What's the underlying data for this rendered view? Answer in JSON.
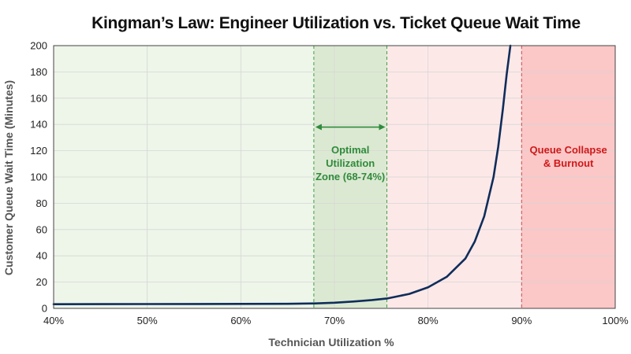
{
  "chart_data": {
    "type": "line",
    "title": "Kingman’s Law: Engineer Utilization vs. Ticket Queue Wait Time",
    "xlabel": "Technician Utilization %",
    "ylabel": "Customer Queue Wait Time (Minutes)",
    "xlim": [
      40,
      100
    ],
    "ylim": [
      0,
      200
    ],
    "x_ticks": [
      40,
      50,
      60,
      70,
      80,
      90,
      100
    ],
    "x_tick_labels": [
      "40%",
      "50%",
      "60%",
      "70%",
      "80%",
      "90%",
      "100%"
    ],
    "y_ticks": [
      0,
      20,
      40,
      60,
      80,
      100,
      120,
      140,
      160,
      180,
      200
    ],
    "y_tick_labels": [
      "0",
      "20",
      "40",
      "60",
      "80",
      "100",
      "120",
      "140",
      "160",
      "180",
      "200"
    ],
    "grid": true,
    "series": [
      {
        "x": [
          40,
          50,
          60,
          65,
          68,
          70,
          72,
          74,
          75.6,
          78,
          80,
          82,
          84,
          85,
          86,
          87,
          87.5,
          88,
          88.4,
          88.8
        ],
        "y": [
          3.2,
          3.3,
          3.4,
          3.5,
          3.8,
          4.3,
          5.2,
          6.3,
          7.5,
          11,
          16,
          24,
          38,
          51,
          70,
          100,
          123,
          152,
          178,
          200
        ]
      }
    ],
    "regions": [
      {
        "x_range": [
          40,
          67.8
        ],
        "color": "#eef5e9"
      },
      {
        "x_range": [
          67.8,
          75.6
        ],
        "color": "#dce9d2",
        "label_lines": [
          "Optimal",
          "Utilization",
          "Zone (68-74%)"
        ],
        "label_color": "#2e8b3a",
        "boundary_color": "#3aa045"
      },
      {
        "x_range": [
          75.6,
          90
        ],
        "color": "#fde8e8"
      },
      {
        "x_range": [
          90,
          100
        ],
        "color": "#fbc7c7",
        "label_lines": [
          "Queue Collapse",
          "& Burnout"
        ],
        "label_color": "#d01818",
        "boundary_color": "#d84a4a"
      }
    ],
    "line_color": "#0f2d5a",
    "arrow_color": "#2e8b3a"
  }
}
